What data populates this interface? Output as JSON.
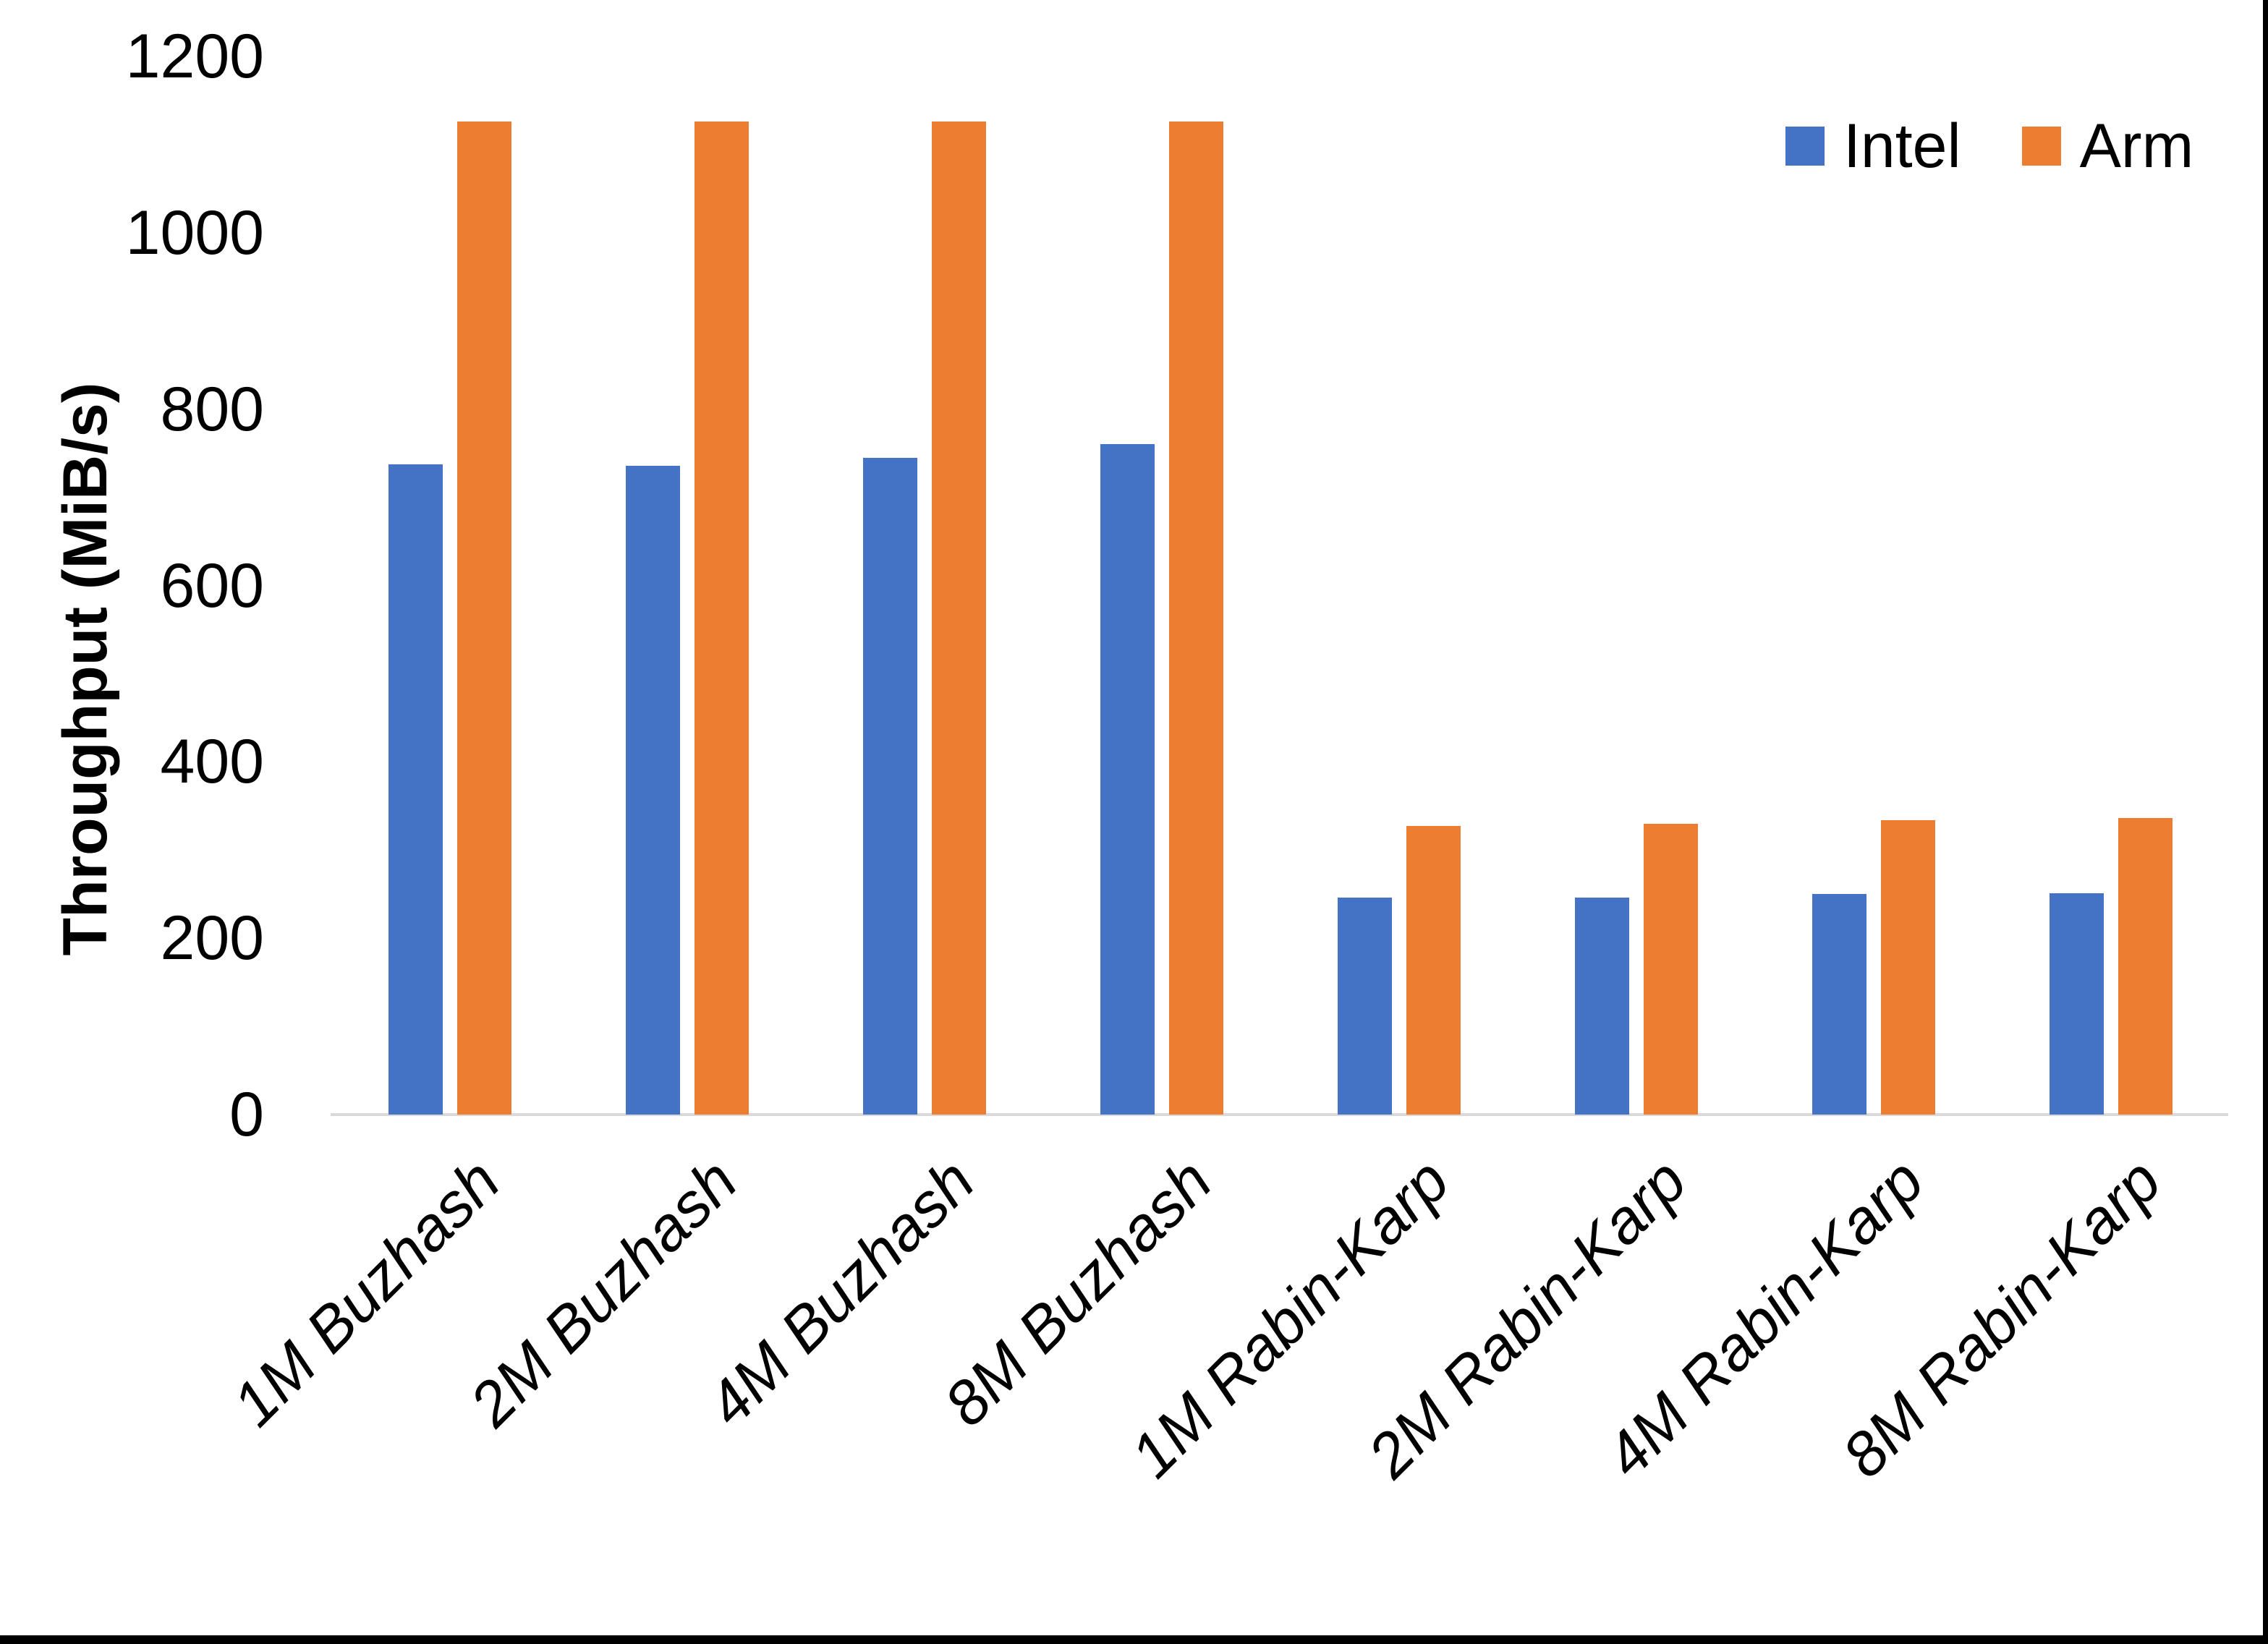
{
  "chart_data": {
    "type": "bar",
    "title": "",
    "xlabel": "",
    "ylabel": "Throughput (MiB/s)",
    "ylim": [
      0,
      1200
    ],
    "yticks": [
      0,
      200,
      400,
      600,
      800,
      1000,
      1200
    ],
    "grid": false,
    "legend_position": "top-right",
    "categories": [
      "1M Buzhash",
      "2M Buzhash",
      "4M Buzhash",
      "8M Buzhash",
      "1M Rabin-Karp",
      "2M Rabin-Karp",
      "4M Rabin-Karp",
      "8M Rabin-Karp"
    ],
    "series": [
      {
        "name": "Intel",
        "color": "#4472C4",
        "values": [
          737,
          736,
          745,
          760,
          246,
          246,
          250,
          251
        ]
      },
      {
        "name": "Arm",
        "color": "#ED7D31",
        "values": [
          1126,
          1126,
          1126,
          1126,
          327,
          330,
          334,
          336
        ]
      }
    ]
  },
  "colors": {
    "background": "#FFFFFF",
    "axis_line": "#D9D9D9",
    "text": "#000000",
    "frame": "#000000"
  }
}
